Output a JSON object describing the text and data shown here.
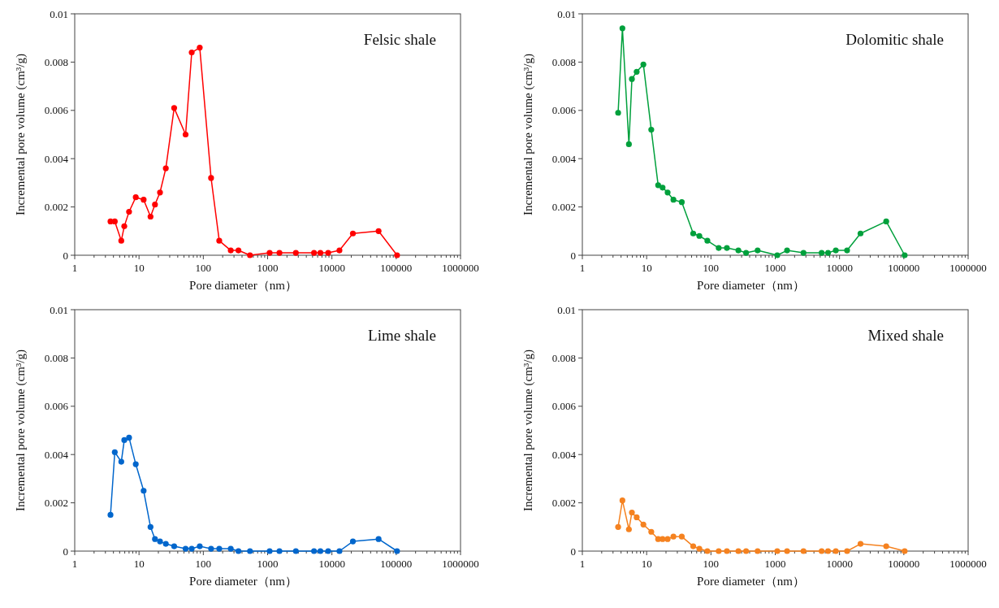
{
  "chart_data": [
    {
      "type": "line",
      "title": "Felsic shale",
      "xlabel": "Pore diameter（nm）",
      "ylabel": "Incremental pore volume (cm³/g)",
      "log": "x",
      "xlim": [
        1,
        1000000
      ],
      "xticks": [
        1,
        10,
        100,
        1000,
        10000,
        100000,
        1000000
      ],
      "ylim": [
        0,
        0.01
      ],
      "yticks": [
        0,
        0.002,
        0.004,
        0.006,
        0.008,
        0.01
      ],
      "grid": false,
      "marker": "circle",
      "line_style": "solid",
      "x": [
        3.6,
        4.2,
        5.3,
        5.9,
        7.0,
        8.9,
        11.8,
        15.1,
        17.7,
        21.2,
        26.1,
        35.2,
        53,
        66,
        88,
        132,
        177,
        267,
        352,
        532,
        1075,
        1527,
        2750,
        5270,
        6620,
        8750,
        13100,
        21200,
        53200,
        103000
      ],
      "series": [
        {
          "color": "#ff0000",
          "values": [
            0.0014,
            0.0014,
            0.0006,
            0.0012,
            0.0018,
            0.0024,
            0.0023,
            0.0016,
            0.0021,
            0.0026,
            0.0036,
            0.0061,
            0.005,
            0.0084,
            0.0086,
            0.0032,
            0.0006,
            0.0002,
            0.0002,
            0,
            0.0001,
            0.0001,
            0.0001,
            0.0001,
            0.0001,
            0.0001,
            0.0002,
            0.0009,
            0.001,
            0
          ]
        }
      ]
    },
    {
      "type": "line",
      "title": "Dolomitic shale",
      "xlabel": "Pore diameter（nm）",
      "ylabel": "Incremental pore volume (cm³/g)",
      "log": "x",
      "xlim": [
        1,
        1000000
      ],
      "xticks": [
        1,
        10,
        100,
        1000,
        10000,
        100000,
        1000000
      ],
      "ylim": [
        0,
        0.01
      ],
      "yticks": [
        0,
        0.002,
        0.004,
        0.006,
        0.008,
        0.01
      ],
      "grid": false,
      "marker": "circle",
      "line_style": "solid",
      "x": [
        3.6,
        4.2,
        5.3,
        5.9,
        7.0,
        8.9,
        11.8,
        15.1,
        17.7,
        21.2,
        26.1,
        35.2,
        53,
        66,
        88,
        132,
        177,
        267,
        352,
        532,
        1075,
        1527,
        2750,
        5270,
        6620,
        8750,
        13100,
        21200,
        53200,
        103000
      ],
      "series": [
        {
          "color": "#00a03c",
          "values": [
            0.0059,
            0.0094,
            0.0046,
            0.0073,
            0.0076,
            0.0079,
            0.0052,
            0.0029,
            0.0028,
            0.0026,
            0.0023,
            0.0022,
            0.0009,
            0.0008,
            0.0006,
            0.0003,
            0.0003,
            0.0002,
            0.0001,
            0.0002,
            0,
            0.0002,
            0.0001,
            0.0001,
            0.0001,
            0.0002,
            0.0002,
            0.0009,
            0.0014,
            0
          ]
        }
      ]
    },
    {
      "type": "line",
      "title": "Lime shale",
      "xlabel": "Pore diameter（nm）",
      "ylabel": "Incremental pore volume (cm³/g)",
      "log": "x",
      "xlim": [
        1,
        1000000
      ],
      "xticks": [
        1,
        10,
        100,
        1000,
        10000,
        100000,
        1000000
      ],
      "ylim": [
        0,
        0.01
      ],
      "yticks": [
        0,
        0.002,
        0.004,
        0.006,
        0.008,
        0.01
      ],
      "grid": false,
      "marker": "circle",
      "line_style": "solid",
      "x": [
        3.6,
        4.2,
        5.3,
        5.9,
        7.0,
        8.9,
        11.8,
        15.1,
        17.7,
        21.2,
        26.1,
        35.2,
        53,
        66,
        88,
        132,
        177,
        267,
        352,
        532,
        1075,
        1527,
        2750,
        5270,
        6620,
        8750,
        13100,
        21200,
        53200,
        103000
      ],
      "series": [
        {
          "color": "#0066cc",
          "values": [
            0.0015,
            0.0041,
            0.0037,
            0.0046,
            0.0047,
            0.0036,
            0.0025,
            0.001,
            0.0005,
            0.0004,
            0.0003,
            0.0002,
            0.0001,
            0.0001,
            0.0002,
            0.0001,
            0.0001,
            0.0001,
            0,
            0,
            0,
            0,
            0,
            0,
            0,
            0,
            0,
            0.0004,
            0.0005,
            0
          ]
        }
      ]
    },
    {
      "type": "line",
      "title": "Mixed shale",
      "xlabel": "Pore diameter（nm）",
      "ylabel": "Incremental pore volume (cm³/g)",
      "log": "x",
      "xlim": [
        1,
        1000000
      ],
      "xticks": [
        1,
        10,
        100,
        1000,
        10000,
        100000,
        1000000
      ],
      "ylim": [
        0,
        0.01
      ],
      "yticks": [
        0,
        0.002,
        0.004,
        0.006,
        0.008,
        0.01
      ],
      "grid": false,
      "marker": "circle",
      "line_style": "solid",
      "x": [
        3.6,
        4.2,
        5.3,
        5.9,
        7.0,
        8.9,
        11.8,
        15.1,
        17.7,
        21.2,
        26.1,
        35.2,
        53,
        66,
        88,
        132,
        177,
        267,
        352,
        532,
        1075,
        1527,
        2750,
        5270,
        6620,
        8750,
        13100,
        21200,
        53200,
        103000
      ],
      "series": [
        {
          "color": "#f58220",
          "values": [
            0.001,
            0.0021,
            0.0009,
            0.0016,
            0.0014,
            0.0011,
            0.0008,
            0.0005,
            0.0005,
            0.0005,
            0.0006,
            0.0006,
            0.0002,
            0.0001,
            0,
            0,
            0,
            0,
            0,
            0,
            0,
            0,
            0,
            0,
            0,
            0,
            0,
            0.0003,
            0.0002,
            0
          ]
        }
      ]
    }
  ]
}
